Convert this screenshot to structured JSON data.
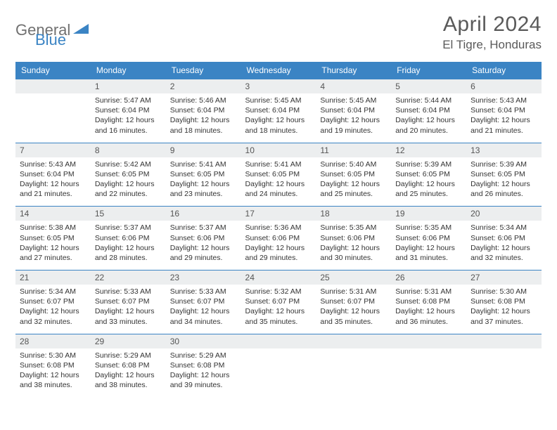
{
  "logo": {
    "text1": "General",
    "text2": "Blue"
  },
  "title": "April 2024",
  "location": "El Tigre, Honduras",
  "colors": {
    "header_bg": "#3b84c4",
    "header_text": "#ffffff",
    "daynum_bg": "#eceeef",
    "border": "#3b84c4",
    "text": "#333333",
    "title_text": "#5a5a5a"
  },
  "day_labels": [
    "Sunday",
    "Monday",
    "Tuesday",
    "Wednesday",
    "Thursday",
    "Friday",
    "Saturday"
  ],
  "weeks": [
    [
      {
        "n": "",
        "sr": "",
        "ss": "",
        "dl": ""
      },
      {
        "n": "1",
        "sr": "5:47 AM",
        "ss": "6:04 PM",
        "dl": "12 hours and 16 minutes."
      },
      {
        "n": "2",
        "sr": "5:46 AM",
        "ss": "6:04 PM",
        "dl": "12 hours and 18 minutes."
      },
      {
        "n": "3",
        "sr": "5:45 AM",
        "ss": "6:04 PM",
        "dl": "12 hours and 18 minutes."
      },
      {
        "n": "4",
        "sr": "5:45 AM",
        "ss": "6:04 PM",
        "dl": "12 hours and 19 minutes."
      },
      {
        "n": "5",
        "sr": "5:44 AM",
        "ss": "6:04 PM",
        "dl": "12 hours and 20 minutes."
      },
      {
        "n": "6",
        "sr": "5:43 AM",
        "ss": "6:04 PM",
        "dl": "12 hours and 21 minutes."
      }
    ],
    [
      {
        "n": "7",
        "sr": "5:43 AM",
        "ss": "6:04 PM",
        "dl": "12 hours and 21 minutes."
      },
      {
        "n": "8",
        "sr": "5:42 AM",
        "ss": "6:05 PM",
        "dl": "12 hours and 22 minutes."
      },
      {
        "n": "9",
        "sr": "5:41 AM",
        "ss": "6:05 PM",
        "dl": "12 hours and 23 minutes."
      },
      {
        "n": "10",
        "sr": "5:41 AM",
        "ss": "6:05 PM",
        "dl": "12 hours and 24 minutes."
      },
      {
        "n": "11",
        "sr": "5:40 AM",
        "ss": "6:05 PM",
        "dl": "12 hours and 25 minutes."
      },
      {
        "n": "12",
        "sr": "5:39 AM",
        "ss": "6:05 PM",
        "dl": "12 hours and 25 minutes."
      },
      {
        "n": "13",
        "sr": "5:39 AM",
        "ss": "6:05 PM",
        "dl": "12 hours and 26 minutes."
      }
    ],
    [
      {
        "n": "14",
        "sr": "5:38 AM",
        "ss": "6:05 PM",
        "dl": "12 hours and 27 minutes."
      },
      {
        "n": "15",
        "sr": "5:37 AM",
        "ss": "6:06 PM",
        "dl": "12 hours and 28 minutes."
      },
      {
        "n": "16",
        "sr": "5:37 AM",
        "ss": "6:06 PM",
        "dl": "12 hours and 29 minutes."
      },
      {
        "n": "17",
        "sr": "5:36 AM",
        "ss": "6:06 PM",
        "dl": "12 hours and 29 minutes."
      },
      {
        "n": "18",
        "sr": "5:35 AM",
        "ss": "6:06 PM",
        "dl": "12 hours and 30 minutes."
      },
      {
        "n": "19",
        "sr": "5:35 AM",
        "ss": "6:06 PM",
        "dl": "12 hours and 31 minutes."
      },
      {
        "n": "20",
        "sr": "5:34 AM",
        "ss": "6:06 PM",
        "dl": "12 hours and 32 minutes."
      }
    ],
    [
      {
        "n": "21",
        "sr": "5:34 AM",
        "ss": "6:07 PM",
        "dl": "12 hours and 32 minutes."
      },
      {
        "n": "22",
        "sr": "5:33 AM",
        "ss": "6:07 PM",
        "dl": "12 hours and 33 minutes."
      },
      {
        "n": "23",
        "sr": "5:33 AM",
        "ss": "6:07 PM",
        "dl": "12 hours and 34 minutes."
      },
      {
        "n": "24",
        "sr": "5:32 AM",
        "ss": "6:07 PM",
        "dl": "12 hours and 35 minutes."
      },
      {
        "n": "25",
        "sr": "5:31 AM",
        "ss": "6:07 PM",
        "dl": "12 hours and 35 minutes."
      },
      {
        "n": "26",
        "sr": "5:31 AM",
        "ss": "6:08 PM",
        "dl": "12 hours and 36 minutes."
      },
      {
        "n": "27",
        "sr": "5:30 AM",
        "ss": "6:08 PM",
        "dl": "12 hours and 37 minutes."
      }
    ],
    [
      {
        "n": "28",
        "sr": "5:30 AM",
        "ss": "6:08 PM",
        "dl": "12 hours and 38 minutes."
      },
      {
        "n": "29",
        "sr": "5:29 AM",
        "ss": "6:08 PM",
        "dl": "12 hours and 38 minutes."
      },
      {
        "n": "30",
        "sr": "5:29 AM",
        "ss": "6:08 PM",
        "dl": "12 hours and 39 minutes."
      },
      {
        "n": "",
        "sr": "",
        "ss": "",
        "dl": ""
      },
      {
        "n": "",
        "sr": "",
        "ss": "",
        "dl": ""
      },
      {
        "n": "",
        "sr": "",
        "ss": "",
        "dl": ""
      },
      {
        "n": "",
        "sr": "",
        "ss": "",
        "dl": ""
      }
    ]
  ],
  "labels": {
    "sunrise": "Sunrise: ",
    "sunset": "Sunset: ",
    "daylight": "Daylight: "
  }
}
